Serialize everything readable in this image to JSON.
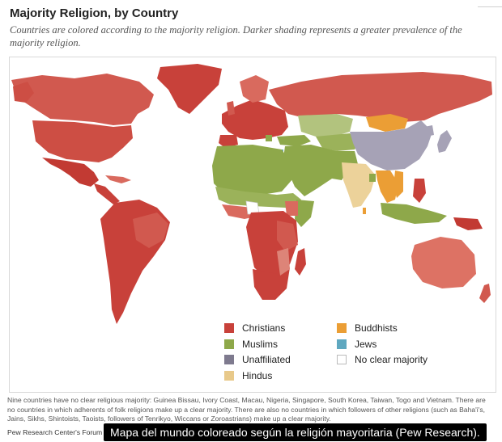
{
  "header": {
    "title": "Majority Religion, by Country",
    "subtitle": "Countries are colored according to the majority religion. Darker shading represents a greater prevalence of the majority religion."
  },
  "legend": {
    "items": [
      {
        "label": "Christians",
        "color": "#c8413a"
      },
      {
        "label": "Muslims",
        "color": "#8ea84a"
      },
      {
        "label": "Unaffiliated",
        "color": "#7e7a8e"
      },
      {
        "label": "Hindus",
        "color": "#e8c98a"
      },
      {
        "label": "Buddhists",
        "color": "#eb9e35"
      },
      {
        "label": "Jews",
        "color": "#5fa8c0"
      },
      {
        "label": "No clear majority",
        "color": "#ffffff"
      }
    ]
  },
  "palette": {
    "christian_dark": "#c8413a",
    "christian_light": "#dd8478",
    "muslim_dark": "#8ea84a",
    "muslim_light": "#b2c37e",
    "unaffiliated": "#a6a2b6",
    "hindu": "#ecd29a",
    "buddhist": "#eb9e35",
    "jews": "#5fa8c0",
    "ocean": "#ffffff"
  },
  "footnote": "Nine countries have no clear religious majority: Guinea Bissau, Ivory Coast, Macau, Nigeria, Singapore, South Korea, Taiwan, Togo and Vietnam. There are no countries in which adherents of folk religions make up a clear majority. There are also no countries in which followers of other religions (such as Baha'i's, Jains, Sikhs, Shintoists, Taoists, followers of Tenrikyo, Wiccans or Zoroastrians) make up a clear majority.",
  "source": "Pew Research Center's Forum on",
  "caption": "Mapa del mundo coloreado según la religión mayoritaria (Pew Research)."
}
